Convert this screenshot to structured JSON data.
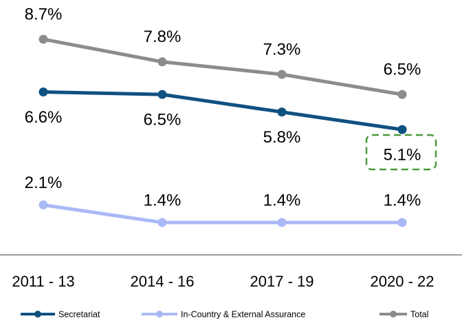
{
  "chart_data": {
    "type": "line",
    "categories": [
      "2011 - 13",
      "2014 - 16",
      "2017 - 19",
      "2020 - 22"
    ],
    "series": [
      {
        "name": "Secretariat",
        "color": "#0f5181",
        "values": [
          6.6,
          6.5,
          5.8,
          5.1
        ],
        "value_labels": [
          "6.6%",
          "6.5%",
          "5.8%",
          "5.1%"
        ]
      },
      {
        "name": "In-Country & External Assurance",
        "color": "#aab9f6",
        "values": [
          2.1,
          1.4,
          1.4,
          1.4
        ],
        "value_labels": [
          "2.1%",
          "1.4%",
          "1.4%",
          "1.4%"
        ]
      },
      {
        "name": "Total",
        "color": "#8c8c8c",
        "values": [
          8.7,
          7.8,
          7.3,
          6.5
        ],
        "value_labels": [
          "8.7%",
          "7.8%",
          "7.3%",
          "6.5%"
        ]
      }
    ],
    "legend": "bottom"
  }
}
